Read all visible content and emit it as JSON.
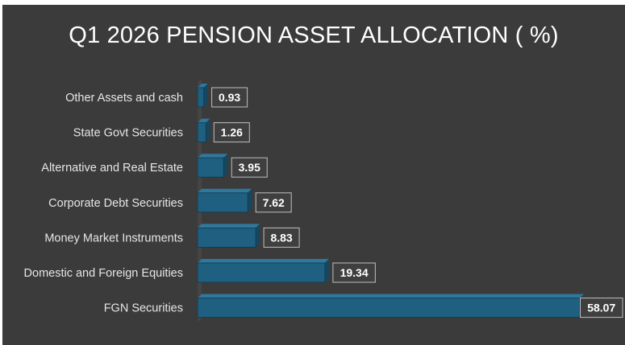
{
  "chart_data": {
    "type": "bar",
    "orientation": "horizontal",
    "title": "Q1 2026 PENSION ASSET ALLOCATION ( %)",
    "categories": [
      "Other Assets and cash",
      "State Govt Securities",
      "Alternative and Real Estate",
      "Corporate Debt Securities",
      "Money Market Instruments",
      "Domestic and Foreign Equities",
      "FGN Securities"
    ],
    "values": [
      0.93,
      1.26,
      3.95,
      7.62,
      8.83,
      19.34,
      58.07
    ],
    "value_labels": [
      "0.93",
      "1.26",
      "3.95",
      "7.62",
      "8.83",
      "19.34",
      "58.07"
    ],
    "xlim": [
      0,
      58.07
    ],
    "grid": false,
    "legend": "none",
    "colors": {
      "background": "#3b3b3b",
      "bar_front": "#1f5f7f",
      "bar_top": "#2f789b",
      "bar_side": "#164761",
      "text": "#ffffff"
    }
  }
}
